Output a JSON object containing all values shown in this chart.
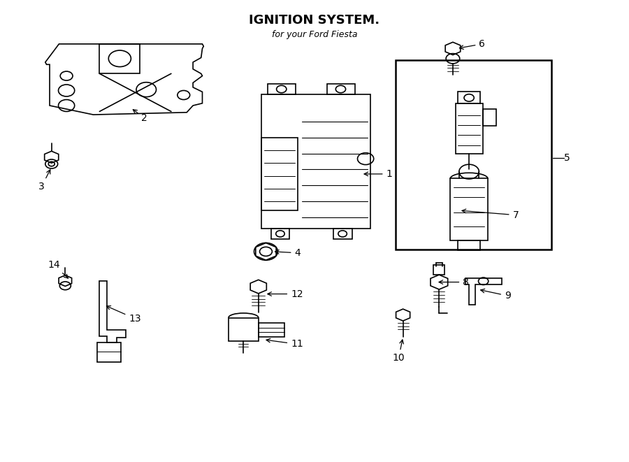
{
  "title": "IGNITION SYSTEM.",
  "subtitle": "for your Ford Fiesta",
  "background_color": "#ffffff",
  "line_color": "#000000",
  "text_color": "#000000",
  "fig_width": 9.0,
  "fig_height": 6.61
}
